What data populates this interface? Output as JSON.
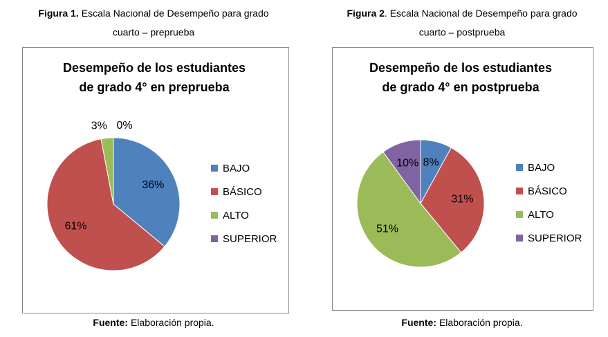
{
  "chart_data": [
    {
      "type": "pie",
      "figure_label": "Figura 1.",
      "figure_caption": "Escala Nacional de Desempeño para grado",
      "figure_caption_2": "cuarto – preprueba",
      "title": [
        "Desempeño de los estudiantes",
        "de grado 4° en preprueba"
      ],
      "categories": [
        "BAJO",
        "BÁSICO",
        "ALTO",
        "SUPERIOR"
      ],
      "values": [
        36,
        61,
        3,
        0
      ],
      "value_labels": [
        "36%",
        "61%",
        "3%",
        "0%"
      ],
      "colors": [
        "#4f81bd",
        "#c0504d",
        "#9bbb59",
        "#8064a2"
      ],
      "legend": "right",
      "source_label": "Fuente:",
      "source_text": "Elaboración propia."
    },
    {
      "type": "pie",
      "figure_label": "Figura 2",
      "figure_caption": ". Escala Nacional de Desempeño para grado",
      "figure_caption_2": "cuarto – postprueba",
      "title": [
        "Desempeño de los estudiantes",
        "de grado 4° en postprueba"
      ],
      "categories": [
        "BAJO",
        "BÁSICO",
        "ALTO",
        "SUPERIOR"
      ],
      "values": [
        8,
        31,
        51,
        10
      ],
      "value_labels": [
        "8%",
        "31%",
        "51%",
        "10%"
      ],
      "colors": [
        "#4f81bd",
        "#c0504d",
        "#9bbb59",
        "#8064a2"
      ],
      "legend": "right",
      "source_label": "Fuente:",
      "source_text": "Elaboración propia."
    }
  ]
}
